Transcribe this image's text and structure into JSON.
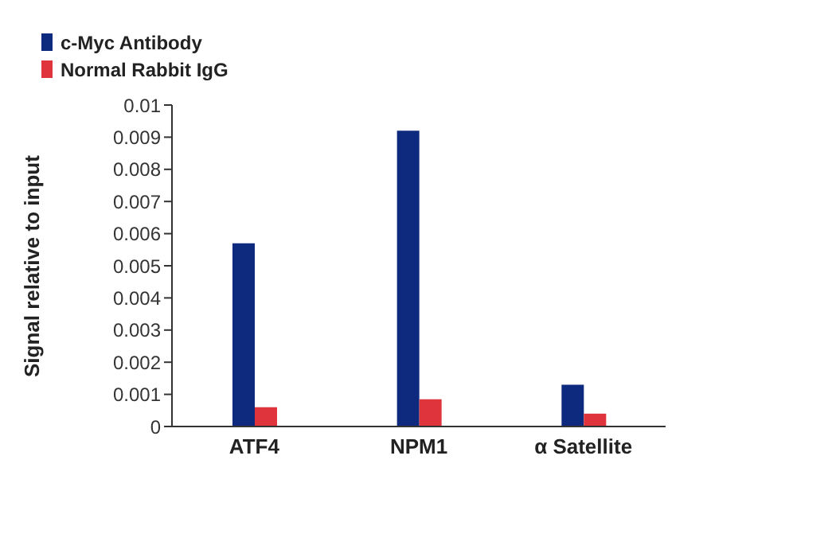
{
  "chart_data": {
    "type": "bar",
    "ylabel": "Signal relative to input",
    "categories": [
      "ATF4",
      "NPM1",
      "α Satellite"
    ],
    "series": [
      {
        "name": "c-Myc Antibody",
        "color": "#0e2a7e",
        "values": [
          0.0057,
          0.0092,
          0.0013
        ]
      },
      {
        "name": "Normal Rabbit IgG",
        "color": "#e0343c",
        "values": [
          0.0006,
          0.00085,
          0.0004
        ]
      }
    ],
    "ylim": [
      0,
      0.01
    ],
    "yticks": [
      0,
      0.001,
      0.002,
      0.003,
      0.004,
      0.005,
      0.006,
      0.007,
      0.008,
      0.009,
      0.01
    ],
    "legend": "top left",
    "grid": false
  }
}
